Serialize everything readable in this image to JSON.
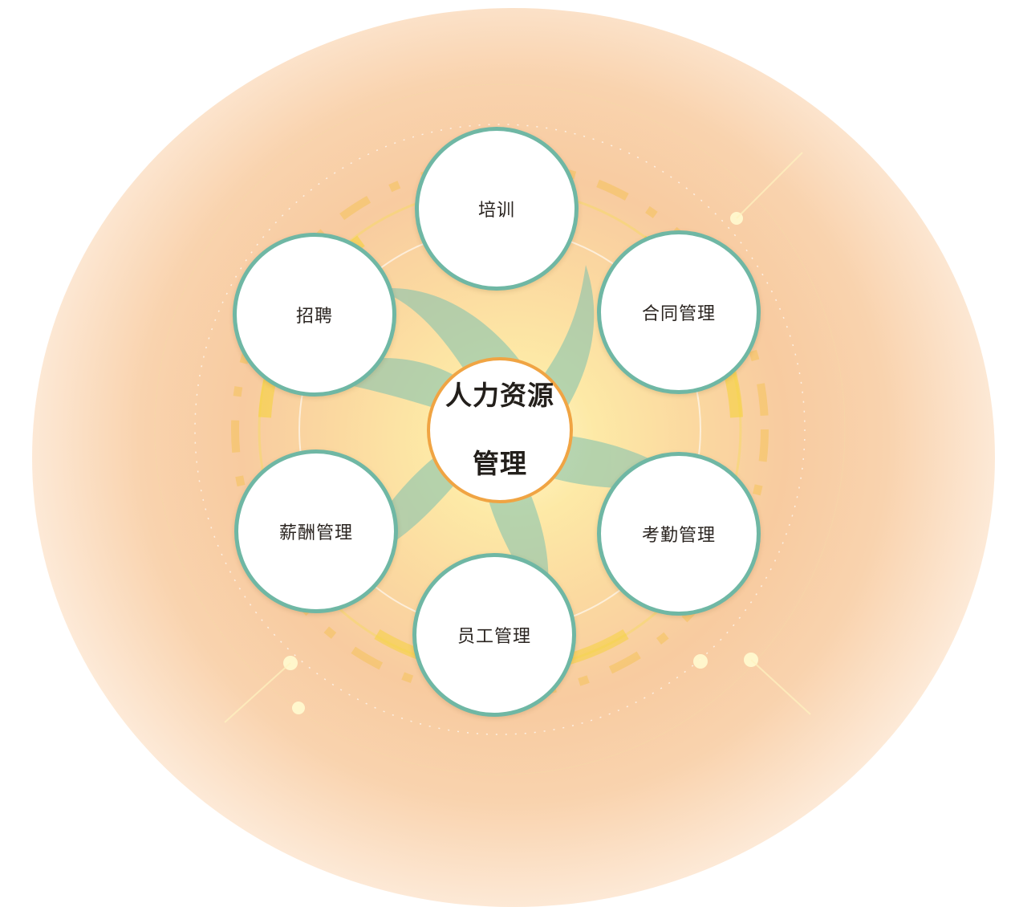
{
  "center": {
    "line1": "人力资源",
    "line2": "管理"
  },
  "modules": [
    {
      "label": "培训"
    },
    {
      "label": "合同管理"
    },
    {
      "label": "考勤管理"
    },
    {
      "label": "员工管理"
    },
    {
      "label": "薪酬管理"
    },
    {
      "label": "招聘"
    }
  ],
  "colors": {
    "node_border": "#6fb7a4",
    "center_border": "#f0a443",
    "swirl": "#7cc1b0",
    "background_glow": "#f8cba0"
  }
}
